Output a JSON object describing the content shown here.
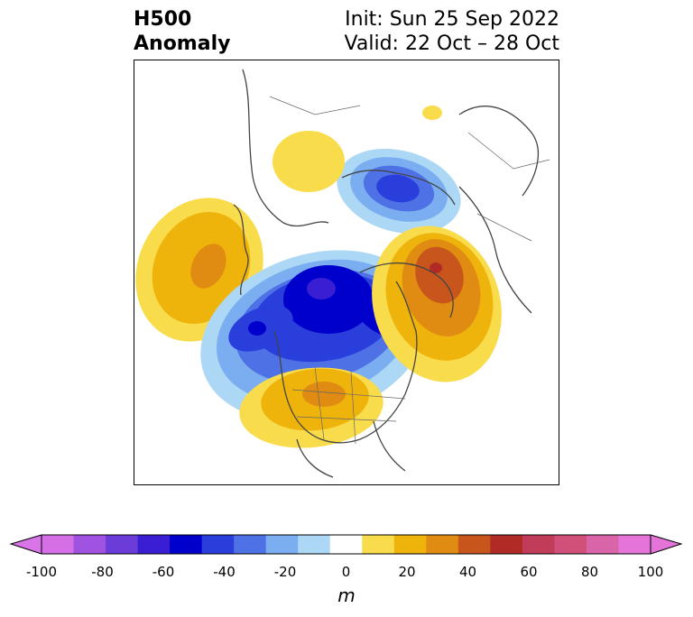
{
  "header": {
    "title_line1": "H500",
    "title_line2": "Anomaly",
    "init_text": "Init: Sun 25 Sep 2022",
    "valid_text": "Valid: 22 Oct – 28 Oct"
  },
  "map": {
    "projection": "polar-stereographic",
    "variable": "500 hPa geopotential height anomaly",
    "centers": [
      {
        "name": "aleutian-high",
        "sign": "positive",
        "peak": 35
      },
      {
        "name": "arctic-low",
        "sign": "negative",
        "peak": -65
      },
      {
        "name": "gulf-of-alaska-low",
        "sign": "negative",
        "peak": -55
      },
      {
        "name": "northern-europe-low",
        "sign": "negative",
        "peak": -55
      },
      {
        "name": "siberia-high",
        "sign": "positive",
        "peak": 18
      },
      {
        "name": "arctic-russia-high",
        "sign": "positive",
        "peak": 12
      },
      {
        "name": "greenland-atlantic-high",
        "sign": "positive",
        "peak": 55
      },
      {
        "name": "north-america-high",
        "sign": "positive",
        "peak": 40
      }
    ]
  },
  "colorbar": {
    "unit": "m",
    "ticks": [
      "-100",
      "-80",
      "-60",
      "-40",
      "-20",
      "0",
      "20",
      "40",
      "60",
      "80",
      "100"
    ],
    "levels": [
      -100,
      -90,
      -80,
      -70,
      -60,
      -50,
      -40,
      -30,
      -20,
      -10,
      10,
      20,
      30,
      40,
      50,
      60,
      70,
      80,
      90,
      100
    ],
    "colors": [
      "#d56fe5",
      "#a052e0",
      "#6b3cd8",
      "#3a1ed3",
      "#0000cc",
      "#2a3edb",
      "#4e72e6",
      "#7aaef0",
      "#acd8f5",
      "#ffffff",
      "#f9dc4c",
      "#efb40c",
      "#e08c12",
      "#c8561c",
      "#b02a26",
      "#c13c58",
      "#d0507a",
      "#d964a8",
      "#e474d8"
    ],
    "under_color": "#d975e8",
    "over_color": "#e474d8"
  }
}
